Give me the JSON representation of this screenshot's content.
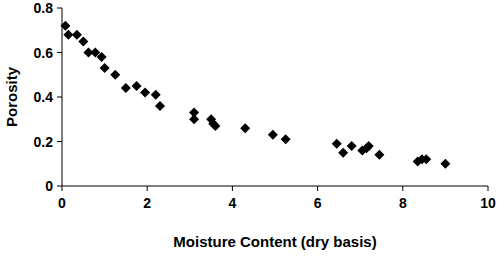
{
  "chart_data": {
    "type": "scatter",
    "x_label": "Moisture Content (dry basis)",
    "y_label": "Porosity",
    "x": [
      0.08,
      0.15,
      0.35,
      0.5,
      0.62,
      0.78,
      0.93,
      1.0,
      1.25,
      1.5,
      1.75,
      1.95,
      2.2,
      2.3,
      3.1,
      3.1,
      3.5,
      3.55,
      3.6,
      4.3,
      4.95,
      5.25,
      6.45,
      6.6,
      6.8,
      7.05,
      7.15,
      7.2,
      7.45,
      8.35,
      8.45,
      8.55,
      9.0
    ],
    "values": [
      0.72,
      0.68,
      0.68,
      0.65,
      0.6,
      0.6,
      0.58,
      0.53,
      0.5,
      0.44,
      0.45,
      0.42,
      0.41,
      0.36,
      0.33,
      0.3,
      0.3,
      0.28,
      0.27,
      0.26,
      0.23,
      0.21,
      0.19,
      0.15,
      0.18,
      0.16,
      0.17,
      0.18,
      0.14,
      0.11,
      0.12,
      0.12,
      0.1
    ],
    "color": "#000000",
    "marker": "diamond",
    "xlim": [
      0,
      10
    ],
    "xticks": [
      0,
      2,
      4,
      6,
      8,
      10
    ],
    "ylim": [
      0,
      0.8
    ],
    "yticks": [
      0,
      0.2,
      0.4,
      0.6,
      0.8
    ],
    "grid": false
  }
}
